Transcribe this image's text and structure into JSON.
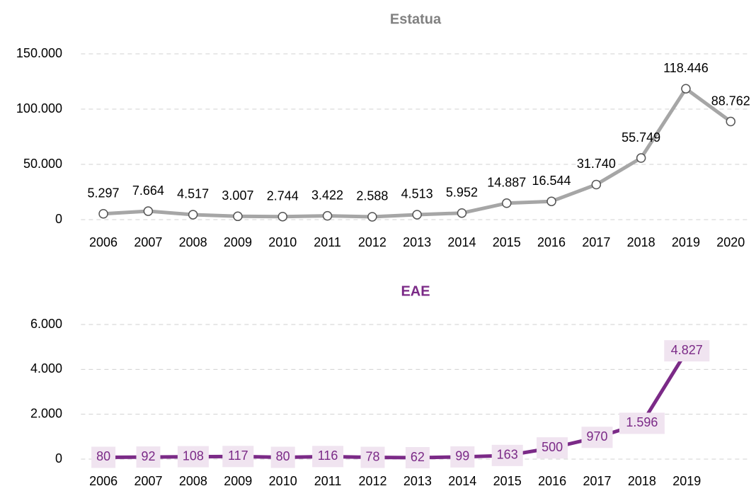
{
  "chart_data": [
    {
      "type": "line",
      "title": "Estatua",
      "title_color": "#808080",
      "categories": [
        "2006",
        "2007",
        "2008",
        "2009",
        "2010",
        "2011",
        "2012",
        "2013",
        "2014",
        "2015",
        "2016",
        "2017",
        "2018",
        "2019",
        "2020"
      ],
      "values": [
        5297,
        7664,
        4517,
        3007,
        2744,
        3422,
        2588,
        4513,
        5952,
        14887,
        16544,
        31740,
        55749,
        118446,
        88762
      ],
      "value_labels": [
        "5.297",
        "7.664",
        "4.517",
        "3.007",
        "2.744",
        "3.422",
        "2.588",
        "4.513",
        "5.952",
        "14.887",
        "16.544",
        "31.740",
        "55.749",
        "118.446",
        "88.762"
      ],
      "color": "#a6a6a6",
      "markers": true,
      "label_box": false,
      "ylim": [
        0,
        150000
      ],
      "yticks": [
        0,
        {
          "value": 50000,
          "label": "50.000"
        },
        {
          "value": 100000,
          "label": "100.000"
        },
        {
          "value": 150000,
          "label": "150.000"
        }
      ],
      "grid": true
    },
    {
      "type": "line",
      "title": "EAE",
      "title_color": "#7b2a87",
      "categories": [
        "2006",
        "2007",
        "2008",
        "2009",
        "2010",
        "2011",
        "2012",
        "2013",
        "2014",
        "2015",
        "2016",
        "2017",
        "2018",
        "2019"
      ],
      "values": [
        80,
        92,
        108,
        117,
        80,
        116,
        78,
        62,
        99,
        163,
        500,
        970,
        1596,
        4827
      ],
      "value_labels": [
        "80",
        "92",
        "108",
        "117",
        "80",
        "116",
        "78",
        "62",
        "99",
        "163",
        "500",
        "970",
        "1.596",
        "4.827"
      ],
      "color": "#7b2a87",
      "markers": false,
      "label_box": true,
      "ylim": [
        0,
        6000
      ],
      "yticks": [
        0,
        {
          "value": 2000,
          "label": "2.000"
        },
        {
          "value": 4000,
          "label": "4.000"
        },
        {
          "value": 6000,
          "label": "6.000"
        }
      ],
      "grid": true
    }
  ]
}
